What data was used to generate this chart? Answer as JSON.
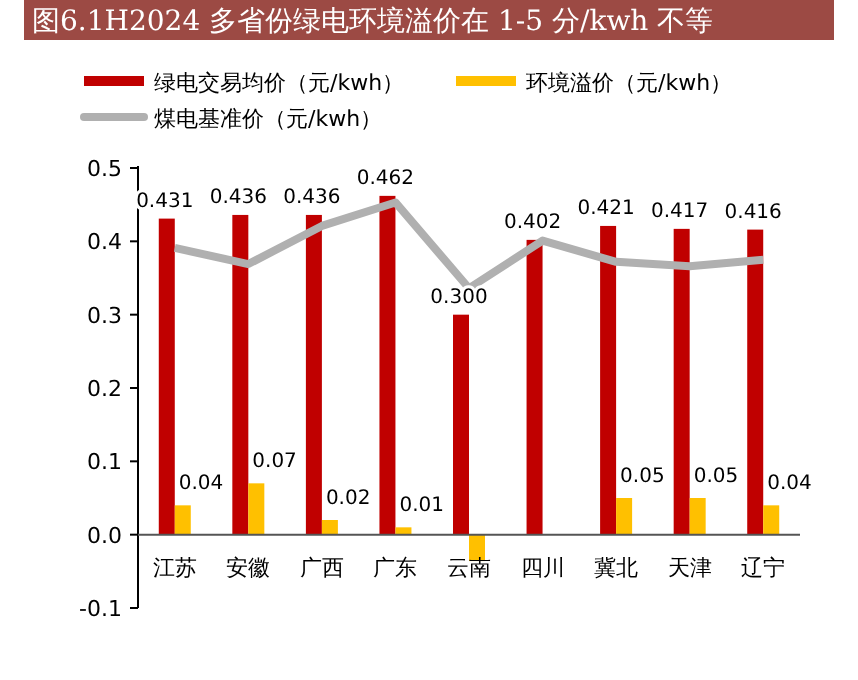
{
  "chart_data": {
    "type": "bar",
    "title": "图6.1H2024 多省份绿电环境溢价在 1-5 分/kwh 不等",
    "categories": [
      "江苏",
      "安徽",
      "广西",
      "广东",
      "云南",
      "四川",
      "冀北",
      "天津",
      "辽宁"
    ],
    "series": [
      {
        "name": "绿电交易均价（元/kwh）",
        "color": "#c00000",
        "values": [
          0.431,
          0.436,
          0.436,
          0.462,
          0.3,
          0.402,
          0.421,
          0.417,
          0.416
        ],
        "value_labels": [
          "0.431",
          "0.436",
          "0.436",
          "0.462",
          "0.300",
          "0.402",
          "0.421",
          "0.417",
          "0.416"
        ]
      },
      {
        "name": "环境溢价（元/kwh）",
        "color": "#ffc000",
        "values": [
          0.04,
          0.07,
          0.02,
          0.01,
          -0.036,
          0,
          0.05,
          0.05,
          0.04
        ],
        "value_labels": [
          "0.04",
          "0.07",
          "0.02",
          "0.01",
          null,
          null,
          "0.05",
          "0.05",
          "0.04"
        ]
      },
      {
        "name": "煤电基准价（元/kwh）",
        "color": "#b0b0b0",
        "type": "line",
        "values": [
          0.391,
          0.369,
          0.421,
          0.453,
          0.336,
          0.401,
          0.372,
          0.366,
          0.375
        ]
      }
    ],
    "ylim": [
      -0.1,
      0.5
    ],
    "yticks": [
      {
        "value": -0.1,
        "label": "-0.1"
      },
      {
        "value": 0,
        "label": "0.0"
      },
      {
        "value": 0.1,
        "label": "0.1"
      },
      {
        "value": 0.2,
        "label": "0.2"
      },
      {
        "value": 0.3,
        "label": "0.3"
      },
      {
        "value": 0.4,
        "label": "0.4"
      },
      {
        "value": 0.5,
        "label": "0.5"
      }
    ],
    "grid": false,
    "legend": "top",
    "marker": "none",
    "line_style": "solid"
  }
}
